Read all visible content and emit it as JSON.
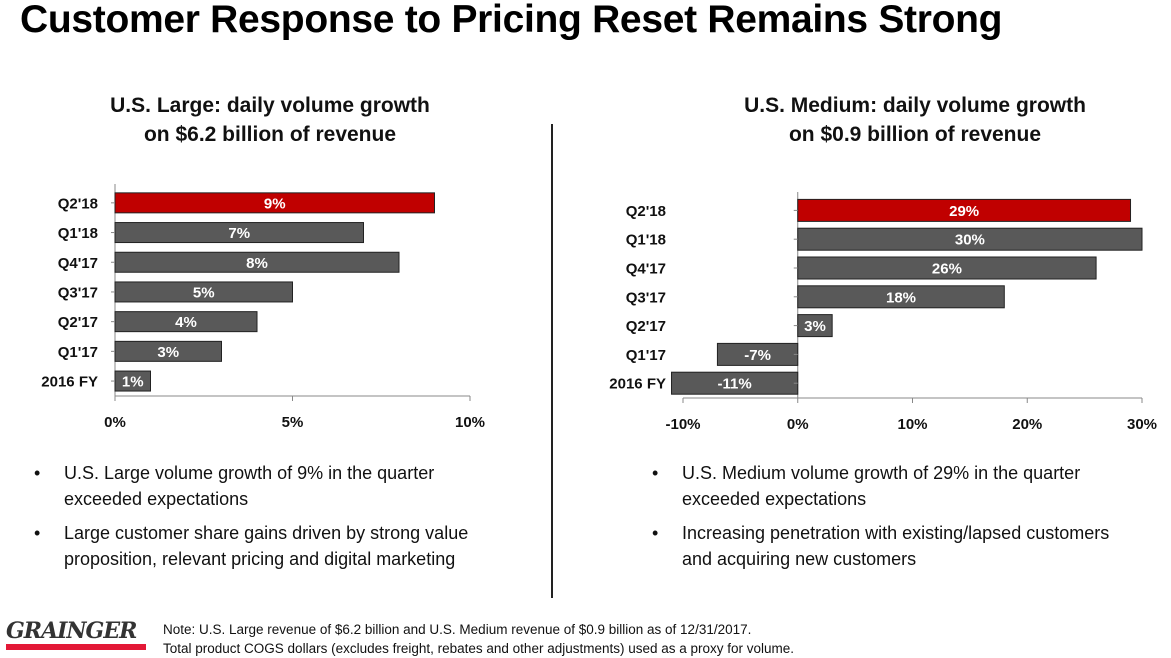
{
  "title": "Customer Response to Pricing Reset Remains Strong",
  "chart_data": [
    {
      "type": "bar",
      "orientation": "horizontal",
      "title": "U.S. Large: daily volume growth on $6.2 billion of revenue",
      "title_lines": [
        "U.S. Large: daily volume growth",
        "on $6.2 billion of revenue"
      ],
      "categories": [
        "Q2'18",
        "Q1'18",
        "Q4'17",
        "Q3'17",
        "Q2'17",
        "Q1'17",
        "2016 FY"
      ],
      "values": [
        9,
        7,
        8,
        5,
        4,
        3,
        1
      ],
      "data_labels": [
        "9%",
        "7%",
        "8%",
        "5%",
        "4%",
        "3%",
        "1%"
      ],
      "xlim": [
        0,
        10
      ],
      "xticks": [
        "0%",
        "5%",
        "10%"
      ],
      "xtick_values": [
        0,
        5,
        10
      ],
      "highlight_index": 0,
      "highlight_color": "#c00000",
      "bar_color": "#595959",
      "grid": false
    },
    {
      "type": "bar",
      "orientation": "horizontal",
      "title": "U.S. Medium: daily volume growth on $0.9 billion of revenue",
      "title_lines": [
        "U.S. Medium: daily volume growth",
        "on $0.9 billion of revenue"
      ],
      "categories": [
        "Q2'18",
        "Q1'18",
        "Q4'17",
        "Q3'17",
        "Q2'17",
        "Q1'17",
        "2016 FY"
      ],
      "values": [
        29,
        30,
        26,
        18,
        3,
        -7,
        -11
      ],
      "data_labels": [
        "29%",
        "30%",
        "26%",
        "18%",
        "3%",
        "-7%",
        "-11%"
      ],
      "xlim": [
        -10,
        30
      ],
      "xticks": [
        "-10%",
        "0%",
        "10%",
        "20%",
        "30%"
      ],
      "xtick_values": [
        -10,
        0,
        10,
        20,
        30
      ],
      "highlight_index": 0,
      "highlight_color": "#c00000",
      "bar_color": "#595959",
      "grid": false
    }
  ],
  "bullets_left": [
    "U.S. Large volume growth of 9% in the quarter exceeded expectations",
    "Large customer share gains driven by strong value proposition, relevant pricing and digital marketing"
  ],
  "bullets_right": [
    "U.S. Medium volume growth of 29% in the quarter exceeded expectations",
    "Increasing penetration with existing/lapsed customers and acquiring new customers"
  ],
  "bullet_symbol": "•",
  "logo": "GRAINGER",
  "note": {
    "line1": "Note: U.S. Large revenue of $6.2 billion and U.S. Medium revenue of $0.9 billion as of 12/31/2017.",
    "line2": "Total product COGS dollars (excludes freight, rebates and other adjustments) used as a proxy for volume."
  }
}
